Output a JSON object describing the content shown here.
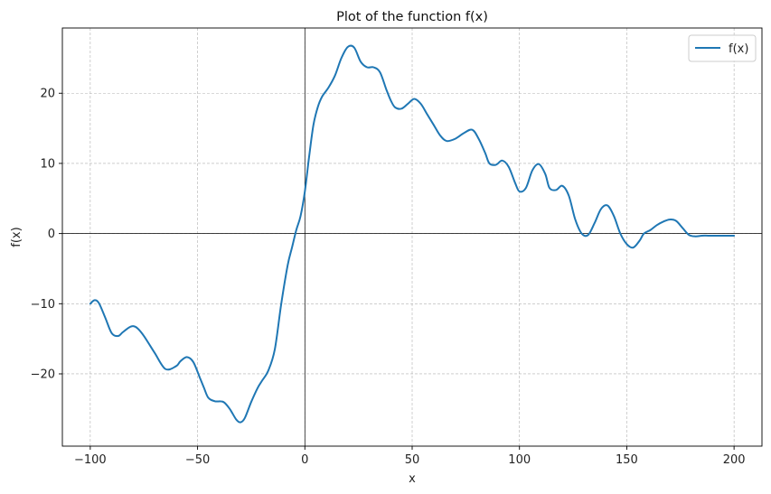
{
  "chart_data": {
    "type": "line",
    "title": "Plot of the function f(x)",
    "xlabel": "x",
    "ylabel": "f(x)",
    "xlim": [
      -113,
      213
    ],
    "ylim": [
      -30.3,
      29.3
    ],
    "x_ticks": [
      -100,
      -50,
      0,
      50,
      100,
      150,
      200
    ],
    "x_tick_labels": [
      "−100",
      "−50",
      "0",
      "50",
      "100",
      "150",
      "200"
    ],
    "y_ticks": [
      -20,
      -10,
      0,
      10,
      20
    ],
    "y_tick_labels": [
      "−20",
      "−10",
      "0",
      "10",
      "20"
    ],
    "grid": true,
    "grid_style": "dashed",
    "reference_lines": {
      "x": 0,
      "y": 0
    },
    "legend": {
      "position": "top-right",
      "entries": [
        "f(x)"
      ]
    },
    "series": [
      {
        "name": "f(x)",
        "color": "#1f77b4",
        "x": [
          -100,
          -98,
          -96,
          -93,
          -90,
          -87,
          -85,
          -82,
          -80,
          -78,
          -75,
          -70,
          -65,
          -60,
          -58,
          -55,
          -52,
          -49,
          -47,
          -45,
          -42,
          -38,
          -35,
          -32,
          -30,
          -28,
          -25,
          -22,
          -20,
          -17,
          -14,
          -11,
          -8,
          -6,
          -4,
          -2,
          0,
          2,
          4,
          6,
          8,
          11,
          14,
          17,
          20,
          23,
          26,
          29,
          32,
          35,
          38,
          40,
          42,
          45,
          48,
          51,
          54,
          57,
          60,
          63,
          66,
          70,
          74,
          78,
          81,
          84,
          86,
          89,
          92,
          95,
          98,
          100,
          103,
          106,
          109,
          112,
          114,
          117,
          120,
          123,
          126,
          129,
          132,
          135,
          138,
          141,
          144,
          147,
          150,
          153,
          156,
          158,
          161,
          164,
          167,
          170,
          173,
          176,
          179,
          182,
          185,
          188,
          191,
          194,
          197,
          200
        ],
        "y": [
          -10,
          -9.5,
          -9.9,
          -12,
          -14.2,
          -14.6,
          -14.1,
          -13.4,
          -13.2,
          -13.5,
          -14.6,
          -17,
          -19.3,
          -18.9,
          -18.2,
          -17.6,
          -18.3,
          -20.5,
          -22,
          -23.4,
          -23.9,
          -24,
          -25,
          -26.5,
          -26.9,
          -26.3,
          -24,
          -22,
          -21,
          -19.5,
          -16.5,
          -10,
          -4.5,
          -2,
          0.5,
          2.5,
          6,
          11,
          15.5,
          18,
          19.5,
          20.8,
          22.5,
          25,
          26.6,
          26.5,
          24.5,
          23.7,
          23.7,
          23,
          20.5,
          19,
          18,
          17.8,
          18.5,
          19.2,
          18.5,
          17,
          15.5,
          14,
          13.2,
          13.5,
          14.3,
          14.8,
          13.5,
          11.5,
          10,
          9.8,
          10.4,
          9.5,
          7.2,
          6,
          6.5,
          9,
          9.9,
          8.5,
          6.5,
          6.2,
          6.8,
          5.4,
          2,
          0,
          -0.2,
          1.5,
          3.5,
          4,
          2.5,
          0,
          -1.5,
          -2,
          -1,
          0,
          0.5,
          1.2,
          1.7,
          2,
          1.8,
          0.8,
          -0.2,
          -0.4,
          -0.3,
          -0.3,
          -0.3,
          -0.3,
          -0.3,
          -0.3
        ]
      }
    ]
  }
}
